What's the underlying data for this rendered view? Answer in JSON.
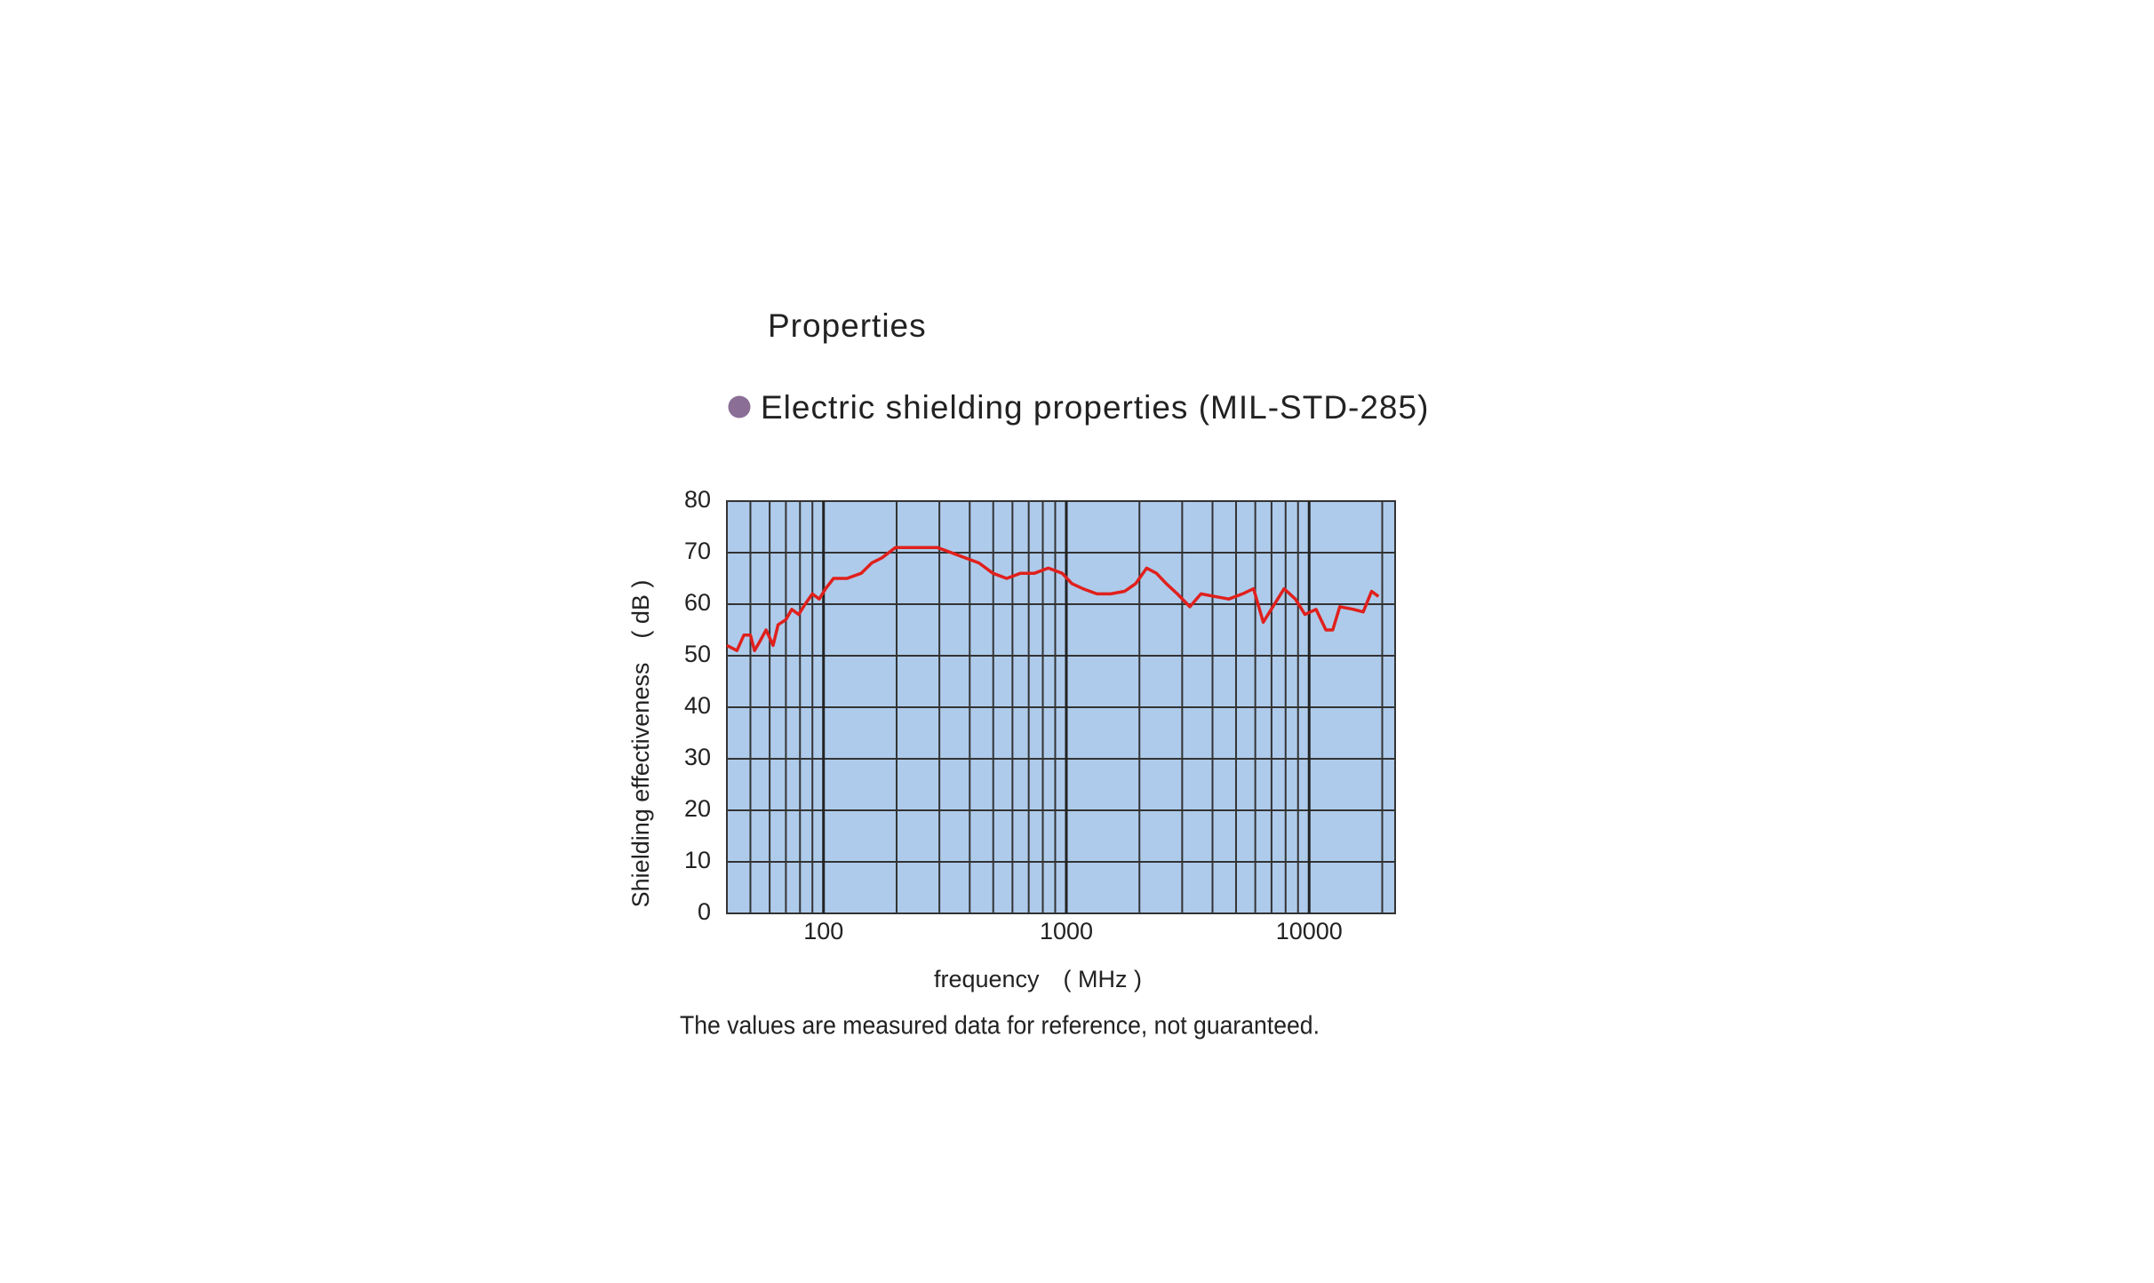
{
  "chart_data": {
    "type": "line",
    "heading": "Properties",
    "title": "Electric shielding properties (MIL-STD-285)",
    "xlabel": "frequency　( MHz )",
    "ylabel": "Shielding effectiveness　( dB )",
    "note": "The values are measured data for reference, not guaranteed.",
    "x": [
      40,
      44,
      47,
      50,
      52,
      55,
      58,
      62,
      65,
      70,
      74,
      79,
      84,
      90,
      96,
      102,
      110,
      125,
      143,
      158,
      174,
      198,
      226,
      258,
      294,
      336,
      383,
      437,
      498,
      568,
      647,
      739,
      843,
      961,
      1054,
      1171,
      1336,
      1523,
      1738,
      1931,
      2143,
      2351,
      2578,
      2866,
      3226,
      3584,
      4084,
      4665,
      5317,
      5904,
      6473,
      7194,
      7889,
      8770,
      9610,
      10680,
      11720,
      12510,
      13370,
      15230,
      16700,
      18080,
      19310
    ],
    "values": [
      52,
      51,
      54,
      54,
      51,
      53,
      55,
      52,
      56,
      57,
      59,
      58,
      60,
      62,
      61,
      63,
      65,
      65,
      66,
      68,
      69,
      71,
      71,
      71,
      71,
      70,
      69,
      68,
      66,
      65,
      66,
      66,
      67,
      66,
      64,
      63,
      62,
      62,
      62.5,
      64,
      67,
      66,
      64,
      62,
      59.5,
      62,
      61.5,
      61,
      62,
      63,
      56.5,
      60,
      63,
      61,
      58,
      59,
      55,
      55,
      59.5,
      59,
      58.5,
      62.5,
      61.5
    ],
    "color": "#e0201c",
    "xscale": "log",
    "xlim": [
      40,
      22600
    ],
    "xticks": [
      100,
      1000,
      10000
    ],
    "ylim": [
      0,
      80
    ],
    "yticks": [
      0,
      10,
      20,
      30,
      40,
      50,
      60,
      70,
      80
    ],
    "grid": true,
    "plot_background": "#aecbeb"
  }
}
